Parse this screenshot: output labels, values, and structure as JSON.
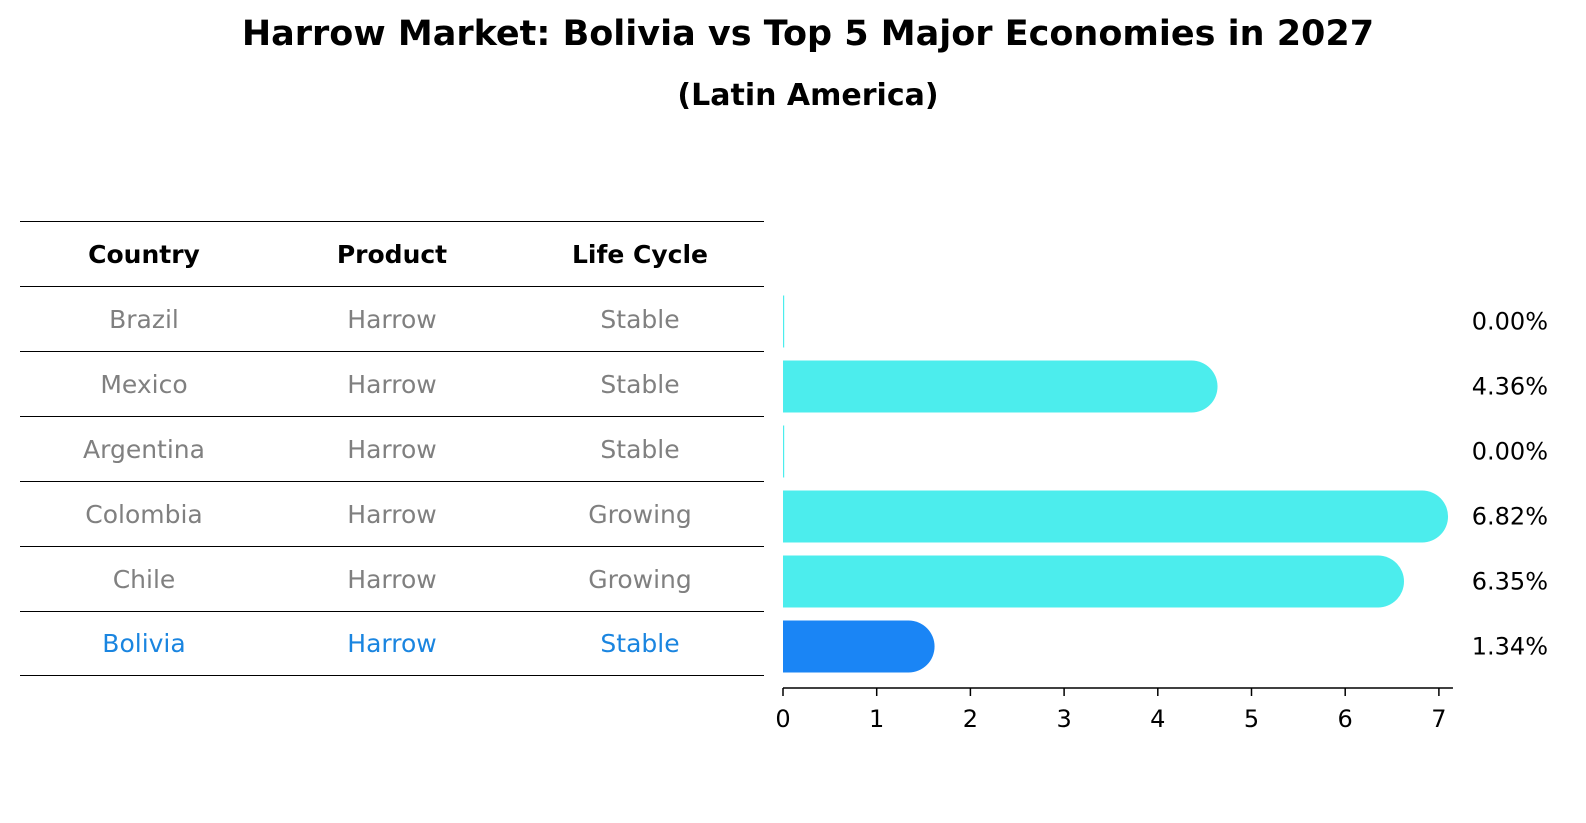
{
  "title": "Harrow Market: Bolivia vs Top 5 Major Economies in 2027",
  "subtitle": "(Latin America)",
  "table": {
    "headers": [
      "Country",
      "Product",
      "Life Cycle"
    ],
    "rows": [
      {
        "country": "Brazil",
        "product": "Harrow",
        "life_cycle": "Stable"
      },
      {
        "country": "Mexico",
        "product": "Harrow",
        "life_cycle": "Stable"
      },
      {
        "country": "Argentina",
        "product": "Harrow",
        "life_cycle": "Stable"
      },
      {
        "country": "Colombia",
        "product": "Harrow",
        "life_cycle": "Growing"
      },
      {
        "country": "Chile",
        "product": "Harrow",
        "life_cycle": "Growing"
      },
      {
        "country": "Bolivia",
        "product": "Harrow",
        "life_cycle": "Stable"
      }
    ]
  },
  "chart_data": {
    "type": "bar",
    "orientation": "horizontal",
    "categories": [
      "Brazil",
      "Mexico",
      "Argentina",
      "Colombia",
      "Chile",
      "Bolivia"
    ],
    "values": [
      0.0,
      4.36,
      0.0,
      6.82,
      6.35,
      1.34
    ],
    "value_labels": [
      "0.00%",
      "4.36%",
      "0.00%",
      "6.82%",
      "6.35%",
      "1.34%"
    ],
    "highlight": "Bolivia",
    "xlim": [
      0,
      7.15
    ],
    "xticks": [
      0,
      1,
      2,
      3,
      4,
      5,
      6,
      7
    ],
    "colors": {
      "default": "#4ceded",
      "highlight": "#1a85f5",
      "highlight_text": "#1a85e0"
    }
  }
}
